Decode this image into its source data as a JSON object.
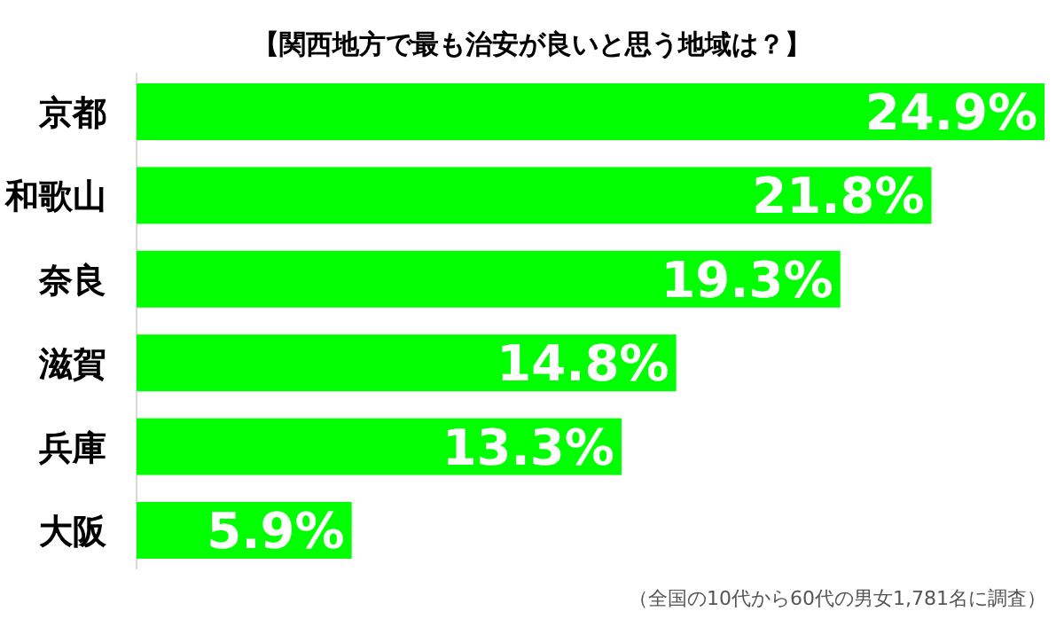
{
  "chart_data": {
    "type": "bar",
    "orientation": "horizontal",
    "title": "【関西地方で最も治安が良いと思う地域は？】",
    "categories": [
      "京都",
      "和歌山",
      "奈良",
      "滋賀",
      "兵庫",
      "大阪"
    ],
    "values": [
      24.9,
      21.8,
      19.3,
      14.8,
      13.3,
      5.9
    ],
    "color": "#00ff00",
    "value_labels": [
      "24.9%",
      "21.8%",
      "19.3%",
      "14.8%",
      "13.3%",
      "5.9%"
    ],
    "annotations": [
      "（全国の10代から60代の男女1,781名に調査）"
    ]
  }
}
